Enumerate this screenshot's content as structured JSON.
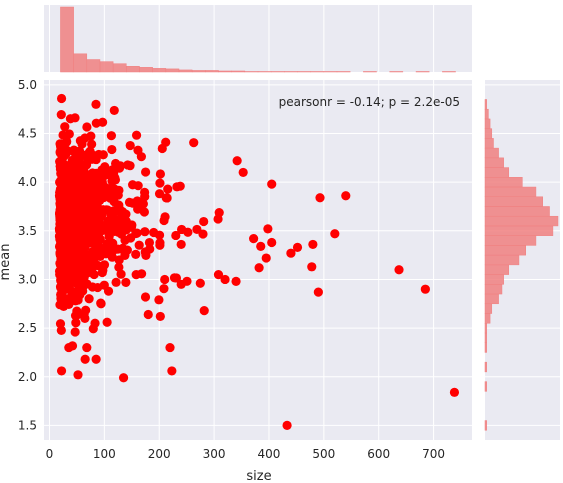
{
  "chart_data": {
    "type": "scatter",
    "style": "joint plot with marginal histograms",
    "xlabel": "size",
    "ylabel": "mean",
    "annotation": "pearsonr = -0.14; p = 2.2e-05",
    "xlim": [
      -10,
      770
    ],
    "ylim": [
      1.35,
      5.05
    ],
    "xticks": [
      "0",
      "100",
      "200",
      "300",
      "400",
      "500",
      "600",
      "700"
    ],
    "yticks": [
      "1.5",
      "2.0",
      "2.5",
      "3.0",
      "3.5",
      "4.0",
      "4.5",
      "5.0"
    ],
    "grid": true,
    "point_color": "#ff0000",
    "hist_color": "#f08080",
    "background_color": "#eaeaf2",
    "outlier_points": [
      {
        "x": 22,
        "y": 4.86
      },
      {
        "x": 22,
        "y": 2.06
      },
      {
        "x": 135,
        "y": 1.99
      },
      {
        "x": 223,
        "y": 2.06
      },
      {
        "x": 433,
        "y": 1.5
      },
      {
        "x": 738,
        "y": 1.84
      },
      {
        "x": 685,
        "y": 2.9
      },
      {
        "x": 637,
        "y": 3.1
      },
      {
        "x": 540,
        "y": 3.86
      },
      {
        "x": 493,
        "y": 3.84
      },
      {
        "x": 520,
        "y": 3.47
      },
      {
        "x": 490,
        "y": 2.87
      },
      {
        "x": 480,
        "y": 3.36
      },
      {
        "x": 478,
        "y": 3.13
      },
      {
        "x": 452,
        "y": 3.33
      },
      {
        "x": 405,
        "y": 3.98
      },
      {
        "x": 440,
        "y": 3.27
      },
      {
        "x": 398,
        "y": 3.52
      },
      {
        "x": 395,
        "y": 3.22
      },
      {
        "x": 405,
        "y": 3.38
      },
      {
        "x": 382,
        "y": 3.12
      },
      {
        "x": 385,
        "y": 3.34
      },
      {
        "x": 372,
        "y": 3.42
      },
      {
        "x": 353,
        "y": 4.1
      },
      {
        "x": 342,
        "y": 4.22
      },
      {
        "x": 282,
        "y": 2.68
      },
      {
        "x": 202,
        "y": 2.62
      },
      {
        "x": 180,
        "y": 2.64
      },
      {
        "x": 105,
        "y": 2.56
      },
      {
        "x": 85,
        "y": 2.18
      },
      {
        "x": 65,
        "y": 2.18
      },
      {
        "x": 68,
        "y": 2.3
      },
      {
        "x": 52,
        "y": 2.02
      },
      {
        "x": 83,
        "y": 2.55
      },
      {
        "x": 320,
        "y": 3.0
      },
      {
        "x": 340,
        "y": 2.98
      },
      {
        "x": 308,
        "y": 3.05
      },
      {
        "x": 240,
        "y": 3.36
      },
      {
        "x": 210,
        "y": 3.0
      },
      {
        "x": 175,
        "y": 2.82
      },
      {
        "x": 158,
        "y": 3.05
      },
      {
        "x": 240,
        "y": 2.95
      }
    ],
    "dense_cluster": {
      "description": "about 1000 points concentrated at size 20-150, mean 2.4-4.7, thinning toward larger size",
      "n": 1000,
      "x_min": 18,
      "x_scale": 45,
      "x_max": 330,
      "y_mean": 3.6,
      "y_sd": 0.38,
      "y_min": 2.3,
      "y_max": 4.8
    },
    "x_histogram": {
      "bin_start": 20,
      "bin_width": 24,
      "counts": [
        125,
        35,
        24,
        20,
        16,
        11,
        9,
        7,
        6,
        4,
        3,
        3,
        2,
        2,
        1,
        1,
        1,
        1,
        1,
        1,
        1,
        1,
        0,
        1,
        0,
        1,
        0,
        1,
        0,
        1
      ]
    },
    "y_histogram": {
      "bin_start": 1.45,
      "bin_width": 0.1,
      "counts": [
        1,
        0,
        0,
        0,
        1,
        0,
        1,
        0,
        1,
        1,
        1,
        3,
        4,
        8,
        10,
        11,
        14,
        20,
        24,
        30,
        40,
        43,
        38,
        34,
        30,
        22,
        14,
        11,
        8,
        5,
        4,
        3,
        2,
        1
      ]
    }
  }
}
